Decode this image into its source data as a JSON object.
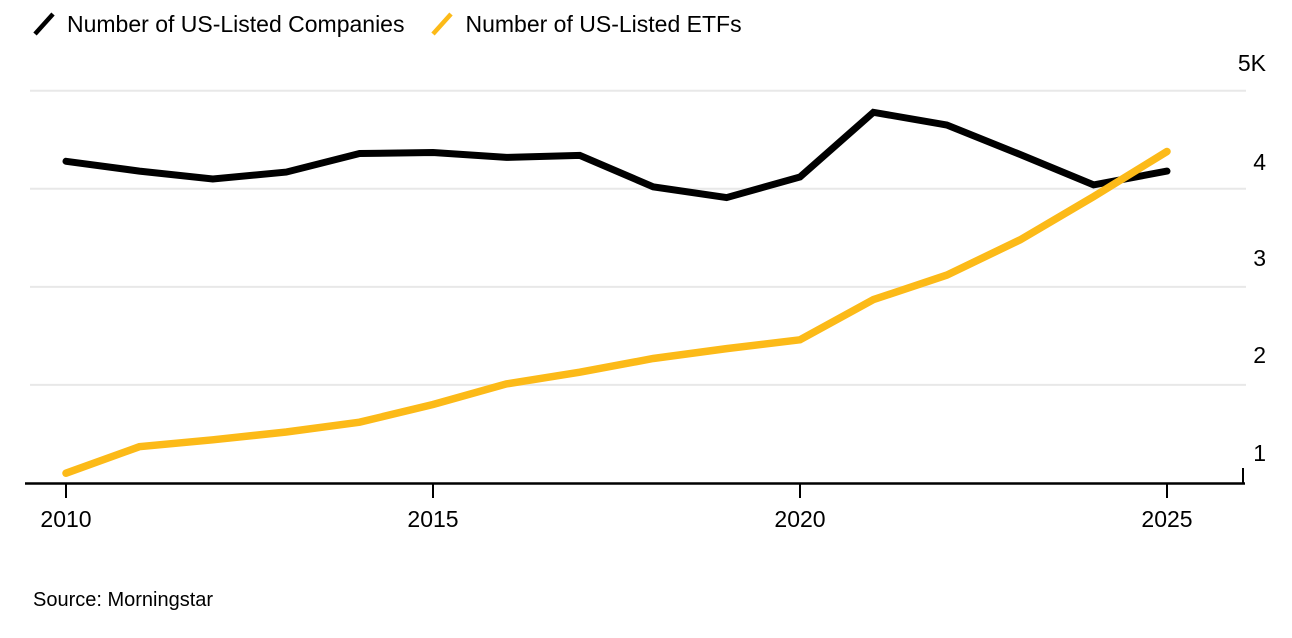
{
  "source": "Source: Morningstar",
  "colors": {
    "companies_line": "#000000",
    "etfs_line": "#FCBA18",
    "gridline": "#e8e8e8",
    "axis": "#000000",
    "background": "#ffffff"
  },
  "chart_data": {
    "type": "line",
    "x": [
      2010,
      2011,
      2012,
      2013,
      2014,
      2015,
      2016,
      2017,
      2018,
      2019,
      2020,
      2021,
      2022,
      2023,
      2024,
      2025
    ],
    "series": [
      {
        "name": "Number of US-Listed Companies",
        "color": "#000000",
        "values": [
          4280,
          4180,
          4100,
          4170,
          4360,
          4370,
          4320,
          4340,
          4020,
          3910,
          4120,
          4780,
          4650,
          4350,
          4040,
          4180
        ]
      },
      {
        "name": "Number of US-Listed ETFs",
        "color": "#FCBA18",
        "values": [
          1100,
          1370,
          1440,
          1520,
          1620,
          1800,
          2010,
          2130,
          2270,
          2370,
          2460,
          2870,
          3120,
          3480,
          3920,
          4380
        ]
      }
    ],
    "title": "",
    "xlabel": "",
    "ylabel": "",
    "x_ticks": [
      2010,
      2015,
      2020,
      2025
    ],
    "x_tick_labels": [
      "2010",
      "2015",
      "2020",
      "2025"
    ],
    "y_ticks": [
      {
        "value": 1000,
        "label": "1"
      },
      {
        "value": 2000,
        "label": "2"
      },
      {
        "value": 3000,
        "label": "3"
      },
      {
        "value": 4000,
        "label": "4"
      },
      {
        "value": 5000,
        "label": "5K"
      }
    ],
    "ylim": [
      1000,
      5200
    ],
    "xlim": [
      2010,
      2025
    ],
    "grid": "horizontal",
    "legend_position": "top-left",
    "source": "Source: Morningstar"
  }
}
